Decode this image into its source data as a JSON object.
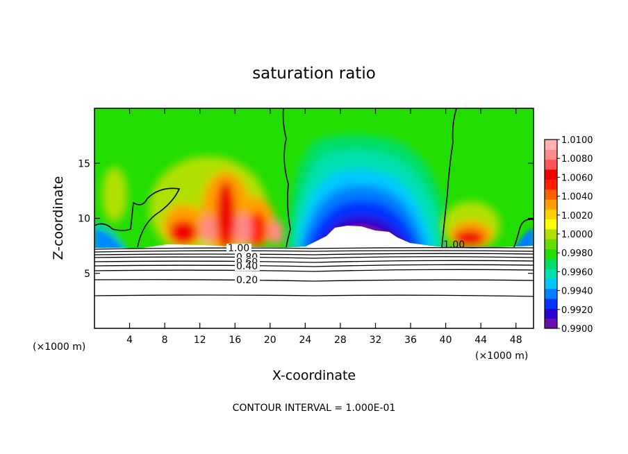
{
  "chart_data": {
    "type": "heatmap",
    "title": "saturation ratio",
    "xlabel": "X-coordinate",
    "ylabel": "Z-coordinate",
    "x_unit": "(×1000 m)",
    "x_unit_right": "(×1000 m)",
    "xlim": [
      0,
      50
    ],
    "ylim": [
      0,
      20
    ],
    "x_ticks": [
      4,
      8,
      12,
      16,
      20,
      24,
      28,
      32,
      36,
      40,
      44,
      48
    ],
    "x_tick_labels": [
      "4",
      "8",
      "12",
      "16",
      "20",
      "24",
      "28",
      "32",
      "36",
      "40",
      "44",
      "48"
    ],
    "y_ticks": [
      5,
      10,
      15
    ],
    "y_tick_labels": [
      "5",
      "10",
      "15"
    ],
    "colorbar": {
      "min": 0.99,
      "max": 1.01,
      "tick_values": [
        1.01,
        1.008,
        1.006,
        1.004,
        1.002,
        1.0,
        0.998,
        0.996,
        0.994,
        0.992,
        0.99
      ],
      "tick_labels": [
        "1.0100",
        "1.0080",
        "1.0060",
        "1.0040",
        "1.0020",
        "1.0000",
        "0.9980",
        "0.9960",
        "0.9940",
        "0.9920",
        "0.9900"
      ],
      "colors": [
        "#6a0dad",
        "#2a00cc",
        "#0033ff",
        "#0080ff",
        "#00c8ff",
        "#00e0b0",
        "#00dd66",
        "#22dd00",
        "#66dd00",
        "#b0e000",
        "#ffff00",
        "#ffd000",
        "#ffa000",
        "#ff6000",
        "#ff2000",
        "#ee0000",
        "#ff5555",
        "#ff8a8a",
        "#ffb0b0"
      ]
    },
    "contour_labels": [
      "1.00",
      "1.00",
      "0.80",
      "0.60",
      "0.40",
      "0.20"
    ],
    "contour_levels": [
      1.0,
      0.9,
      0.8,
      0.7,
      0.6,
      0.5,
      0.4,
      0.3,
      0.2,
      0.1
    ],
    "contour_interval_text": "CONTOUR INTERVAL = 1.000E-01",
    "regions": {
      "subsaturated_dome": {
        "x_range": [
          22,
          40
        ],
        "center_x": 29.5,
        "top_z": 9.5
      },
      "supersaturated_peaks_x": [
        9,
        12,
        15,
        19,
        43
      ],
      "unity_contour_x": [
        21.5,
        40.2
      ],
      "surface_layer_top_z": 7.5
    }
  }
}
